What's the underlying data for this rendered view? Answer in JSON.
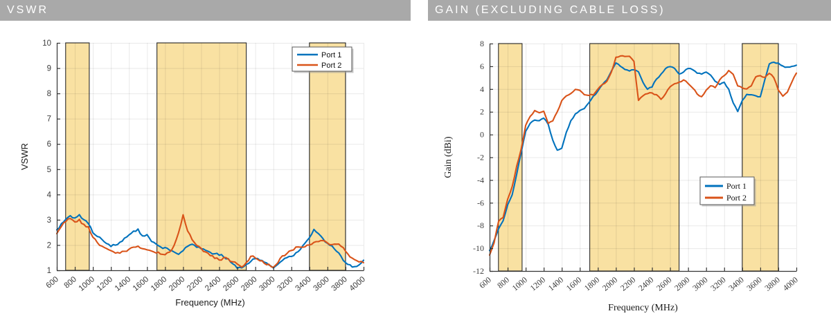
{
  "theme": {
    "header_bg": "#A9A9A9",
    "header_text": "#FFFFFF",
    "port1_color": "#0072BD",
    "port2_color": "#D95319",
    "band_fill": "#F9E1A2",
    "band_border": "#2B2B2B",
    "axis_color": "#333333",
    "tick_label_color": "#3C3C3C"
  },
  "headers": [
    {
      "label": "VSWR"
    },
    {
      "label": "GAIN (EXCLUDING CABLE LOSS)"
    }
  ],
  "chart_data": [
    {
      "type": "line",
      "title": "VSWR",
      "xlabel": "Frequency (MHz)",
      "ylabel": "VSWR",
      "xlim": [
        600,
        4000
      ],
      "ylim": [
        1,
        10
      ],
      "xticks": [
        600,
        800,
        1000,
        1200,
        1400,
        1600,
        1800,
        2000,
        2200,
        2400,
        2600,
        2800,
        3000,
        3200,
        3400,
        3600,
        3800,
        4000
      ],
      "yticks": [
        1,
        2,
        3,
        4,
        5,
        6,
        7,
        8,
        9,
        10
      ],
      "grid": true,
      "legend": [
        "Port 1",
        "Port 2"
      ],
      "legend_position": "top-right-inside",
      "highlight_bands_mhz": [
        [
          698,
          960
        ],
        [
          1710,
          2700
        ],
        [
          3400,
          3800
        ]
      ],
      "noise": 0.05,
      "x": [
        600,
        650,
        700,
        750,
        800,
        850,
        900,
        950,
        1000,
        1050,
        1100,
        1150,
        1200,
        1250,
        1300,
        1350,
        1400,
        1450,
        1500,
        1550,
        1600,
        1650,
        1700,
        1750,
        1800,
        1850,
        1900,
        1950,
        2000,
        2050,
        2100,
        2150,
        2200,
        2250,
        2300,
        2350,
        2400,
        2450,
        2500,
        2550,
        2600,
        2650,
        2700,
        2750,
        2800,
        2850,
        2900,
        2950,
        3000,
        3050,
        3100,
        3150,
        3200,
        3250,
        3300,
        3350,
        3400,
        3450,
        3500,
        3550,
        3600,
        3650,
        3700,
        3750,
        3800,
        3850,
        3900,
        3950,
        4000
      ],
      "series": [
        {
          "name": "Port 1",
          "values": [
            2.6,
            2.85,
            3.0,
            3.15,
            3.05,
            3.2,
            3.0,
            2.85,
            2.5,
            2.35,
            2.25,
            2.05,
            1.95,
            2.0,
            2.1,
            2.25,
            2.4,
            2.55,
            2.62,
            2.35,
            2.4,
            2.15,
            2.05,
            1.95,
            1.88,
            1.8,
            1.72,
            1.65,
            1.78,
            1.95,
            2.02,
            1.92,
            1.86,
            1.78,
            1.72,
            1.67,
            1.62,
            1.55,
            1.45,
            1.25,
            1.1,
            1.08,
            1.22,
            1.35,
            1.45,
            1.4,
            1.32,
            1.2,
            1.1,
            1.22,
            1.4,
            1.5,
            1.55,
            1.7,
            1.85,
            2.05,
            2.3,
            2.6,
            2.45,
            2.25,
            2.05,
            1.95,
            1.75,
            1.55,
            1.32,
            1.2,
            1.12,
            1.22,
            1.4
          ]
        },
        {
          "name": "Port 2",
          "values": [
            2.45,
            2.75,
            2.95,
            3.05,
            2.9,
            3.0,
            2.8,
            2.7,
            2.3,
            2.1,
            1.95,
            1.85,
            1.78,
            1.7,
            1.68,
            1.75,
            1.85,
            1.92,
            1.95,
            1.88,
            1.82,
            1.76,
            1.7,
            1.66,
            1.62,
            1.72,
            2.0,
            2.5,
            3.2,
            2.55,
            2.2,
            2.0,
            1.85,
            1.72,
            1.58,
            1.48,
            1.4,
            1.5,
            1.45,
            1.35,
            1.25,
            1.15,
            1.3,
            1.55,
            1.5,
            1.38,
            1.3,
            1.22,
            1.12,
            1.3,
            1.55,
            1.65,
            1.8,
            1.9,
            1.92,
            1.95,
            2.0,
            2.1,
            2.15,
            2.2,
            2.1,
            2.0,
            2.05,
            1.95,
            1.75,
            1.55,
            1.4,
            1.32,
            1.3
          ]
        }
      ]
    },
    {
      "type": "line",
      "title": "GAIN (EXCLUDING CABLE LOSS)",
      "xlabel": "Frequency (MHz)",
      "ylabel": "Gain (dBi)",
      "xlim": [
        600,
        4000
      ],
      "ylim": [
        -12,
        8
      ],
      "xticks": [
        600,
        800,
        1000,
        1200,
        1400,
        1600,
        1800,
        2000,
        2200,
        2400,
        2600,
        2800,
        3000,
        3200,
        3400,
        3600,
        3800,
        4000
      ],
      "yticks": [
        -12,
        -10,
        -8,
        -6,
        -4,
        -2,
        0,
        2,
        4,
        6,
        8
      ],
      "grid": true,
      "legend": [
        "Port 1",
        "Port 2"
      ],
      "legend_position": "right-middle-inside",
      "highlight_bands_mhz": [
        [
          698,
          960
        ],
        [
          1710,
          2700
        ],
        [
          3400,
          3800
        ]
      ],
      "noise": 0.06,
      "x": [
        600,
        650,
        700,
        750,
        800,
        850,
        900,
        950,
        1000,
        1050,
        1100,
        1150,
        1200,
        1250,
        1300,
        1350,
        1400,
        1450,
        1500,
        1550,
        1600,
        1650,
        1700,
        1750,
        1800,
        1850,
        1900,
        1950,
        2000,
        2050,
        2100,
        2150,
        2200,
        2250,
        2300,
        2350,
        2400,
        2450,
        2500,
        2550,
        2600,
        2650,
        2700,
        2750,
        2800,
        2850,
        2900,
        2950,
        3000,
        3050,
        3100,
        3150,
        3200,
        3250,
        3300,
        3350,
        3400,
        3450,
        3500,
        3550,
        3600,
        3650,
        3700,
        3750,
        3800,
        3850,
        3900,
        3950,
        4000
      ],
      "series": [
        {
          "name": "Port 1",
          "values": [
            -10.2,
            -9.3,
            -8.3,
            -7.6,
            -6.2,
            -5.3,
            -3.5,
            -1.6,
            0.3,
            1.0,
            1.3,
            1.2,
            1.45,
            0.9,
            -0.5,
            -1.4,
            -1.2,
            0.2,
            1.2,
            1.8,
            2.1,
            2.3,
            2.8,
            3.4,
            3.8,
            4.4,
            4.8,
            5.6,
            6.3,
            6.0,
            5.7,
            5.6,
            5.7,
            5.5,
            4.6,
            4.0,
            4.2,
            4.9,
            5.3,
            5.8,
            6.0,
            5.8,
            5.3,
            5.5,
            5.8,
            5.7,
            5.4,
            5.3,
            5.5,
            5.2,
            4.7,
            4.4,
            4.6,
            4.0,
            2.8,
            2.0,
            3.0,
            3.5,
            3.5,
            3.4,
            3.3,
            4.8,
            6.2,
            6.35,
            6.3,
            6.0,
            5.9,
            6.0,
            6.1
          ]
        },
        {
          "name": "Port 2",
          "values": [
            -10.6,
            -9.5,
            -7.6,
            -7.3,
            -5.7,
            -4.6,
            -2.8,
            -1.3,
            0.8,
            1.6,
            2.1,
            1.9,
            2.05,
            1.0,
            1.2,
            2.0,
            3.0,
            3.4,
            3.6,
            4.0,
            3.9,
            3.5,
            3.45,
            3.5,
            4.0,
            4.4,
            4.7,
            5.5,
            6.8,
            6.9,
            6.85,
            6.9,
            6.4,
            3.0,
            3.4,
            3.6,
            3.65,
            3.5,
            3.1,
            3.6,
            4.2,
            4.5,
            4.6,
            4.8,
            4.5,
            4.1,
            3.6,
            3.3,
            3.9,
            4.3,
            4.1,
            4.8,
            5.2,
            5.6,
            5.3,
            4.3,
            4.1,
            4.0,
            4.3,
            5.1,
            5.2,
            5.0,
            5.4,
            5.0,
            3.9,
            3.4,
            3.7,
            4.6,
            5.4
          ]
        }
      ]
    }
  ]
}
